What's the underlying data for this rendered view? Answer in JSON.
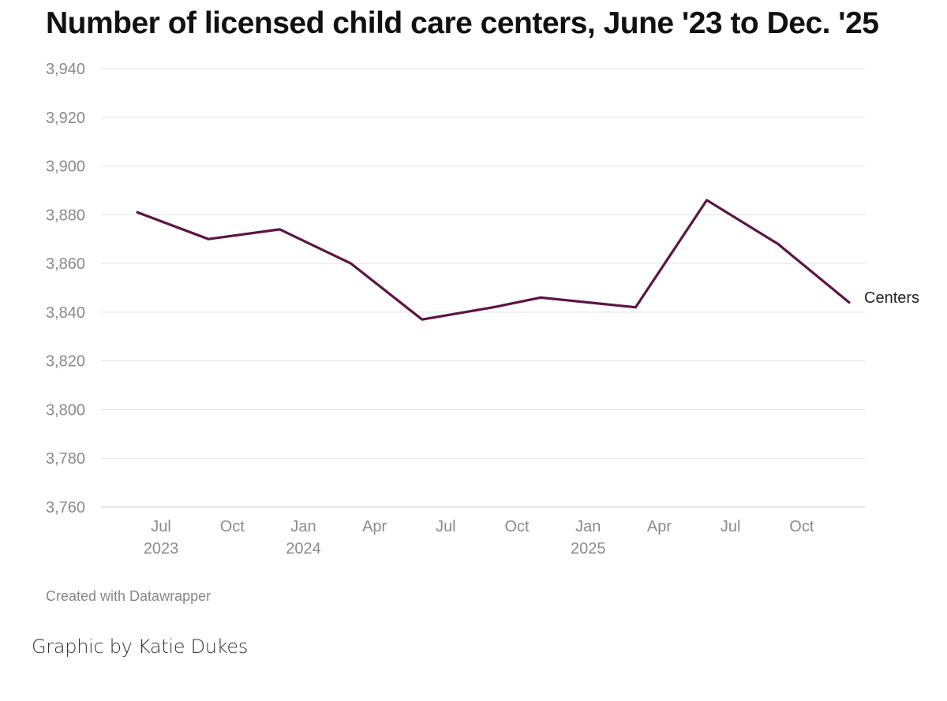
{
  "chart_data": {
    "type": "line",
    "title": "Number of licensed child care centers, June '23 to Dec. '25",
    "xlabel": "",
    "ylabel": "",
    "ylim": [
      3760,
      3940
    ],
    "yticks": [
      3760,
      3780,
      3800,
      3820,
      3840,
      3860,
      3880,
      3900,
      3920,
      3940
    ],
    "ytick_labels": [
      "3,760",
      "3,780",
      "3,800",
      "3,820",
      "3,840",
      "3,860",
      "3,880",
      "3,900",
      "3,920",
      "3,940"
    ],
    "xlim": [
      "2023-06",
      "2025-12"
    ],
    "xticks": [
      {
        "date": "2023-07",
        "label": "Jul",
        "year": "2023"
      },
      {
        "date": "2023-10",
        "label": "Oct",
        "year": ""
      },
      {
        "date": "2024-01",
        "label": "Jan",
        "year": "2024"
      },
      {
        "date": "2024-04",
        "label": "Apr",
        "year": ""
      },
      {
        "date": "2024-07",
        "label": "Jul",
        "year": ""
      },
      {
        "date": "2024-10",
        "label": "Oct",
        "year": ""
      },
      {
        "date": "2025-01",
        "label": "Jan",
        "year": "2025"
      },
      {
        "date": "2025-04",
        "label": "Apr",
        "year": ""
      },
      {
        "date": "2025-07",
        "label": "Jul",
        "year": ""
      },
      {
        "date": "2025-10",
        "label": "Oct",
        "year": ""
      }
    ],
    "grid": true,
    "series": [
      {
        "name": "Centers",
        "color": "#5c1444",
        "points": [
          {
            "x": "2023-06",
            "y": 3881
          },
          {
            "x": "2023-09",
            "y": 3870
          },
          {
            "x": "2023-12",
            "y": 3874
          },
          {
            "x": "2024-03",
            "y": 3860
          },
          {
            "x": "2024-06",
            "y": 3837
          },
          {
            "x": "2024-09",
            "y": 3842
          },
          {
            "x": "2024-11",
            "y": 3846
          },
          {
            "x": "2025-03",
            "y": 3842
          },
          {
            "x": "2025-06",
            "y": 3886
          },
          {
            "x": "2025-09",
            "y": 3868
          },
          {
            "x": "2025-12",
            "y": 3844
          }
        ]
      }
    ]
  },
  "credit": "Created with Datawrapper",
  "byline": "Graphic by Katie Dukes"
}
